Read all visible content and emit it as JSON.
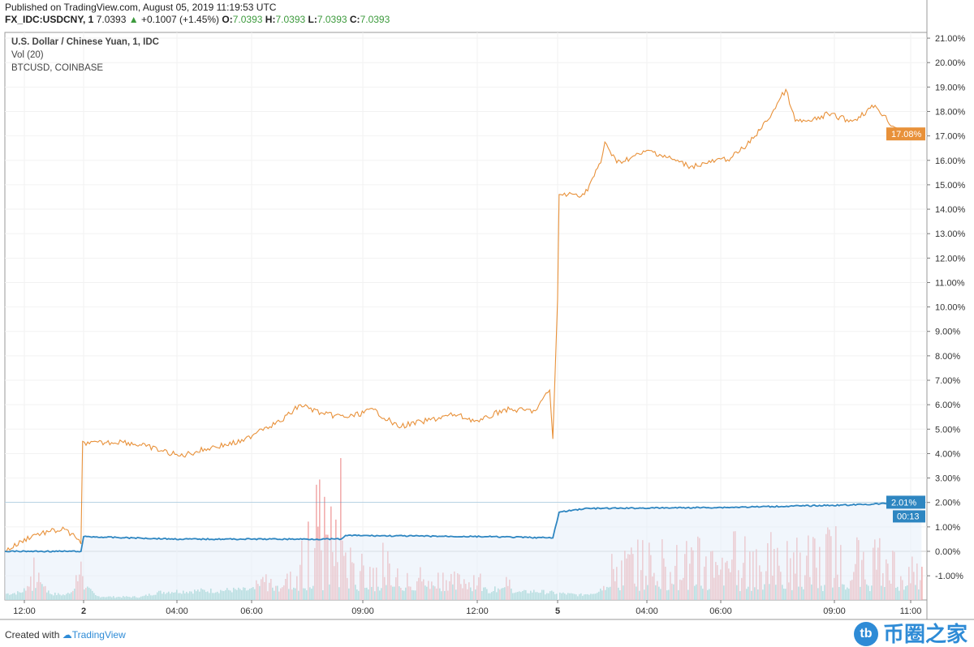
{
  "header": {
    "published": "Published on TradingView.com, August 05, 2019 11:19:53 UTC",
    "symbol": "FX_IDC:USDCNY, 1",
    "last": "7.0393",
    "change": "+0.1007 (+1.45%)",
    "o_label": "O:",
    "o": "7.0393",
    "h_label": "H:",
    "h": "7.0393",
    "l_label": "L:",
    "l": "7.0393",
    "c_label": "C:",
    "c": "7.0393"
  },
  "legend": [
    "U.S. Dollar / Chinese Yuan, 1, IDC",
    "Vol (20)",
    "BTCUSD, COINBASE"
  ],
  "footer": {
    "created": "Created with",
    "brand": "TradingView"
  },
  "watermark": {
    "logo": "tb",
    "text": "币圈之家"
  },
  "chart_data": {
    "type": "line",
    "yaxis": {
      "ticks": [
        "21.00%",
        "20.00%",
        "19.00%",
        "18.00%",
        "17.00%",
        "16.00%",
        "15.00%",
        "14.00%",
        "13.00%",
        "12.00%",
        "11.00%",
        "10.00%",
        "9.00%",
        "8.00%",
        "7.00%",
        "6.00%",
        "5.00%",
        "4.00%",
        "3.00%",
        "2.00%",
        "1.00%",
        "0.00%",
        "-1.00%"
      ],
      "unit": "%",
      "position": "right"
    },
    "xaxis": {
      "ticks": [
        {
          "t": "08-01 12:00",
          "label": "12:00",
          "bold": false
        },
        {
          "t": "08-02 00:00",
          "label": "2",
          "bold": true
        },
        {
          "t": "08-02 04:00",
          "label": "04:00",
          "bold": false
        },
        {
          "t": "08-02 06:00",
          "label": "06:00",
          "bold": false
        },
        {
          "t": "08-02 09:00",
          "label": "09:00",
          "bold": false
        },
        {
          "t": "08-02 12:00",
          "label": "12:00",
          "bold": false
        },
        {
          "t": "08-05 00:00",
          "label": "5",
          "bold": true
        },
        {
          "t": "08-05 04:00",
          "label": "04:00",
          "bold": false
        },
        {
          "t": "08-05 06:00",
          "label": "06:00",
          "bold": false
        },
        {
          "t": "08-05 09:00",
          "label": "09:00",
          "bold": false
        },
        {
          "t": "08-05 11:00",
          "label": "11:00",
          "bold": false
        }
      ]
    },
    "grid": true,
    "series": [
      {
        "name": "BTCUSD, COINBASE",
        "color": "#e8913a",
        "last_label": "17.08%",
        "points": [
          [
            "08-01 08:00",
            0
          ],
          [
            "08-01 13:40",
            0.66
          ],
          [
            "08-01 16:53",
            0.8
          ],
          [
            "08-01 20:10",
            0.9
          ],
          [
            "08-01 22:38",
            0.5
          ],
          [
            "08-01 23:28",
            0.3
          ],
          [
            "08-01 23:48",
            4.5
          ],
          [
            "08-02 00:15",
            4.4
          ],
          [
            "08-02 01:38",
            4.5
          ],
          [
            "08-02 02:41",
            4.3
          ],
          [
            "08-02 04:05",
            3.9
          ],
          [
            "08-02 04:55",
            4.25
          ],
          [
            "08-02 05:47",
            4.5
          ],
          [
            "08-02 06:13",
            5.0
          ],
          [
            "08-02 06:46",
            5.3
          ],
          [
            "08-02 07:19",
            6.0
          ],
          [
            "08-02 07:58",
            5.6
          ],
          [
            "08-02 08:38",
            5.5
          ],
          [
            "08-02 09:17",
            5.8
          ],
          [
            "08-02 09:55",
            5.1
          ],
          [
            "08-02 10:33",
            5.3
          ],
          [
            "08-02 11:24",
            5.6
          ],
          [
            "08-02 12:03",
            5.3
          ],
          [
            "08-02 12:41",
            5.8
          ],
          [
            "08-02 13:32",
            5.75
          ],
          [
            "08-02 13:55",
            6.6
          ],
          [
            "08-02 14:00",
            4.6
          ],
          [
            "08-04 23:58",
            10.3
          ],
          [
            "08-05 00:04",
            14.6
          ],
          [
            "08-05 00:28",
            14.6
          ],
          [
            "08-05 01:12",
            14.6
          ],
          [
            "08-05 01:56",
            15.9
          ],
          [
            "08-05 02:07",
            16.75
          ],
          [
            "08-05 02:39",
            15.9
          ],
          [
            "08-05 04:05",
            16.4
          ],
          [
            "08-05 05:11",
            15.75
          ],
          [
            "08-05 06:16",
            16.1
          ],
          [
            "08-05 06:41",
            16.6
          ],
          [
            "08-05 07:13",
            17.6
          ],
          [
            "08-05 07:43",
            18.9
          ],
          [
            "08-05 07:58",
            17.6
          ],
          [
            "08-05 08:24",
            17.6
          ],
          [
            "08-05 08:50",
            17.9
          ],
          [
            "08-05 09:28",
            17.6
          ],
          [
            "08-05 10:04",
            18.25
          ],
          [
            "08-05 10:32",
            17.4
          ],
          [
            "08-05 10:57",
            17.1
          ],
          [
            "08-05 11:17",
            17.08
          ]
        ]
      },
      {
        "name": "U.S. Dollar / Chinese Yuan, 1, IDC",
        "color": "#2e86c1",
        "last_label": "2.01%",
        "countdown": "00:13",
        "points": [
          [
            "08-01 08:00",
            0
          ],
          [
            "08-01 23:28",
            0
          ],
          [
            "08-02 00:00",
            0.6
          ],
          [
            "08-02 04:05",
            0.5
          ],
          [
            "08-02 08:25",
            0.5
          ],
          [
            "08-02 08:32",
            0.65
          ],
          [
            "08-02 12:15",
            0.6
          ],
          [
            "08-02 14:00",
            0.55
          ],
          [
            "08-05 00:04",
            1.6
          ],
          [
            "08-05 01:12",
            1.75
          ],
          [
            "08-05 06:16",
            1.8
          ],
          [
            "08-05 09:28",
            1.9
          ],
          [
            "08-05 11:17",
            2.01
          ]
        ]
      }
    ],
    "volume": {
      "name": "Vol (20)",
      "up_color": "#7ec8c0",
      "down_color": "#f0a0a0",
      "profile": [
        10,
        12,
        30,
        10,
        8,
        28,
        6,
        5,
        5,
        5,
        12,
        14,
        14,
        15,
        15,
        16,
        16,
        18,
        18,
        20,
        55,
        100,
        45,
        40,
        30,
        38,
        28,
        25,
        20,
        22,
        18,
        22,
        15,
        20,
        12,
        14,
        12,
        10,
        8,
        12,
        30,
        35,
        40,
        45,
        38,
        40,
        42,
        38,
        45,
        50,
        48,
        42,
        40,
        45,
        48,
        50,
        42,
        45,
        40,
        35,
        30,
        25
      ]
    }
  }
}
